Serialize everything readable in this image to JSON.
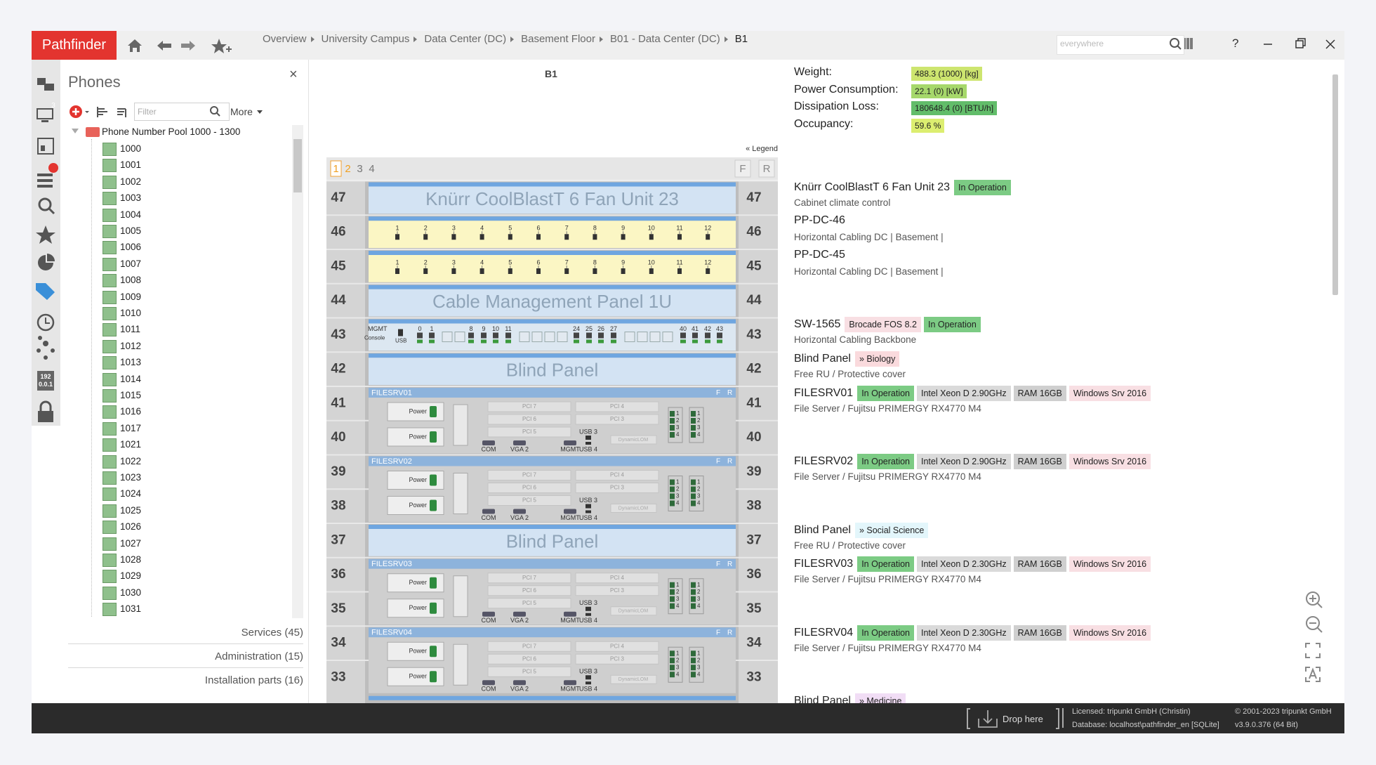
{
  "app": {
    "name": "Pathfinder"
  },
  "breadcrumb": [
    "Overview",
    "University Campus",
    "Data Center (DC)",
    "Basement Floor",
    "B01 - Data Center (DC)",
    "B1"
  ],
  "search": {
    "placeholder": "everywhere"
  },
  "window_buttons": {
    "help": "?"
  },
  "sidebar": {
    "badge": "3",
    "ip_icon": [
      "192",
      "0.0.1"
    ]
  },
  "phones": {
    "title": "Phones",
    "close": "×",
    "filter_placeholder": "Filter",
    "more": "More",
    "tree_root": "Phone Number Pool 1000 - 1300",
    "items": [
      "1000",
      "1001",
      "1002",
      "1003",
      "1004",
      "1005",
      "1006",
      "1007",
      "1008",
      "1009",
      "1010",
      "1011",
      "1012",
      "1013",
      "1014",
      "1015",
      "1016",
      "1017",
      "1021",
      "1022",
      "1023",
      "1024",
      "1025",
      "1026",
      "1027",
      "1028",
      "1029",
      "1030",
      "1031"
    ]
  },
  "sections": [
    "Services (45)",
    "Administration (15)",
    "Installation parts (16)"
  ],
  "rack": {
    "title": "B1",
    "legend": "« Legend",
    "pages": [
      "1",
      "2",
      "3",
      "4"
    ],
    "views": [
      "F",
      "R"
    ],
    "units": [
      47,
      46,
      45,
      44,
      43,
      42,
      41,
      40,
      39,
      38,
      37,
      36,
      35,
      34,
      33
    ],
    "fan": "Knürr CoolBlastT 6 Fan Unit 23",
    "cable": "Cable Management Panel 1U",
    "blind": "Blind Panel",
    "servers": [
      "FILESRV01",
      "FILESRV02",
      "FILESRV03",
      "FILESRV04"
    ],
    "patch_ports": [
      "1",
      "2",
      "3",
      "4",
      "5",
      "6",
      "7",
      "8",
      "9",
      "10",
      "11",
      "12"
    ],
    "switch": {
      "mgmt": "MGMT",
      "console": "Console",
      "usb": "USB",
      "ports": [
        "0",
        "1",
        "8",
        "9",
        "10",
        "11",
        "24",
        "25",
        "26",
        "27",
        "40",
        "41",
        "42",
        "43"
      ]
    },
    "server_face": {
      "power": "Power",
      "pci": [
        "PCI 7",
        "PCI 4",
        "PCI 6",
        "PCI 3",
        "PCI 5"
      ],
      "usb3": "USB 3",
      "usb4": "USB 4",
      "com": "COM",
      "vga": "VGA 2",
      "mgmt": "MGMT",
      "lom": "DynamicLOM",
      "ports": [
        "1",
        "2",
        "3",
        "4"
      ]
    }
  },
  "details": {
    "properties": [
      {
        "label": "Weight:",
        "value": "488.3 (1000) [kg]",
        "color": "#cde56f"
      },
      {
        "label": "Power Consumption:",
        "value": "22.1 (0) [kW]",
        "color": "#a6d86b"
      },
      {
        "label": "Dissipation Loss:",
        "value": "180648.4 (0) [BTU/h]",
        "color": "#62bd6a"
      },
      {
        "label": "Occupancy:",
        "value": "59.6 %",
        "color": "#dcee70"
      }
    ],
    "items": [
      {
        "name": "Knürr CoolBlastT 6 Fan Unit 23",
        "tags": [
          {
            "text": "In Operation",
            "color": "#7ccb84"
          }
        ],
        "desc": "Cabinet climate control"
      },
      {
        "name": "PP-DC-46",
        "tags": [],
        "desc": "Horizontal Cabling DC | Basement |"
      },
      {
        "name": "PP-DC-45",
        "tags": [],
        "desc": "Horizontal Cabling DC | Basement |"
      },
      {
        "name": "SW-1565",
        "tags": [
          {
            "text": "Brocade FOS 8.2",
            "color": "#f8dfe3"
          },
          {
            "text": "In Operation",
            "color": "#7ccb84"
          }
        ],
        "desc": "Horizontal Cabling Backbone"
      },
      {
        "name": "Blind Panel",
        "tags": [
          {
            "text": "» Biology",
            "color": "#fadadd"
          }
        ],
        "desc": "Free RU / Protective cover"
      },
      {
        "name": "FILESRV01",
        "tags": [
          {
            "text": "In Operation",
            "color": "#7ccb84"
          },
          {
            "text": "Intel Xeon D 2.90GHz",
            "color": "#dadada"
          },
          {
            "text": "RAM 16GB",
            "color": "#cfcfcf"
          },
          {
            "text": "Windows Srv 2016",
            "color": "#f8dfe3"
          }
        ],
        "desc": "File Server / Fujitsu PRIMERGY RX4770 M4"
      },
      {
        "name": "FILESRV02",
        "tags": [
          {
            "text": "In Operation",
            "color": "#7ccb84"
          },
          {
            "text": "Intel Xeon D 2.90GHz",
            "color": "#dadada"
          },
          {
            "text": "RAM 16GB",
            "color": "#cfcfcf"
          },
          {
            "text": "Windows Srv 2016",
            "color": "#f8dfe3"
          }
        ],
        "desc": "File Server / Fujitsu PRIMERGY RX4770 M4"
      },
      {
        "name": "Blind Panel",
        "tags": [
          {
            "text": "» Social Science",
            "color": "#e3f6fb"
          }
        ],
        "desc": "Free RU / Protective cover"
      },
      {
        "name": "FILESRV03",
        "tags": [
          {
            "text": "In Operation",
            "color": "#7ccb84"
          },
          {
            "text": "Intel Xeon D 2.30GHz",
            "color": "#dadada"
          },
          {
            "text": "RAM 16GB",
            "color": "#cfcfcf"
          },
          {
            "text": "Windows Srv 2016",
            "color": "#f8dfe3"
          }
        ],
        "desc": "File Server / Fujitsu PRIMERGY RX4770 M4"
      },
      {
        "name": "FILESRV04",
        "tags": [
          {
            "text": "In Operation",
            "color": "#7ccb84"
          },
          {
            "text": "Intel Xeon D 2.30GHz",
            "color": "#dadada"
          },
          {
            "text": "RAM 16GB",
            "color": "#cfcfcf"
          },
          {
            "text": "Windows Srv 2016",
            "color": "#f8dfe3"
          }
        ],
        "desc": "File Server / Fujitsu PRIMERGY RX4770 M4"
      },
      {
        "name": "Blind Panel",
        "tags": [
          {
            "text": "» Medicine",
            "color": "#f1ddf5"
          }
        ],
        "desc": ""
      }
    ]
  },
  "footer": {
    "drop": "Drop here",
    "license": "Licensed: tripunkt GmbH (Christin)",
    "database": "Database: localhost\\pathfinder_en [SQLite]",
    "copyright": "© 2001-2023 tripunkt GmbH",
    "version": "v3.9.0.376 (64 Bit)"
  }
}
